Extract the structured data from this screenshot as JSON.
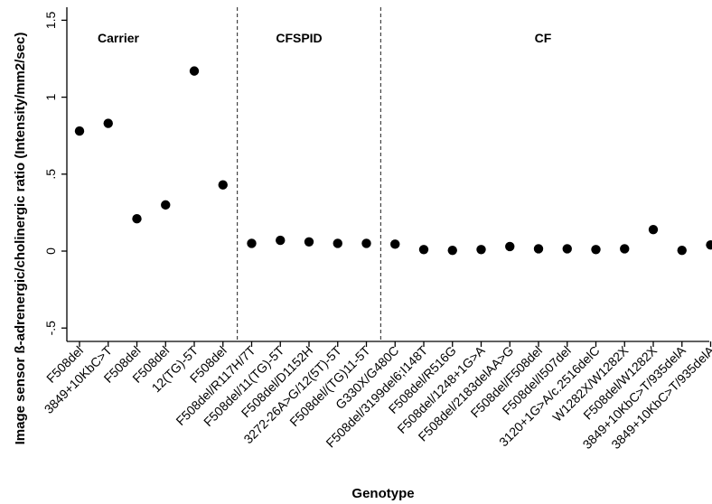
{
  "chart_data": {
    "type": "scatter",
    "xlabel": "Genotype",
    "ylabel": "Image sensor ß-adrenergic/cholinergic ratio (Intensity/mm2/sec)",
    "ylim": [
      -0.55,
      1.55
    ],
    "yticks": [
      -0.5,
      0,
      0.5,
      1,
      1.5
    ],
    "ytick_labels": [
      "-.5",
      "0",
      ".5",
      "1",
      "1.5"
    ],
    "grid": false,
    "groups": [
      {
        "label": "Carrier",
        "start": 0,
        "end": 5
      },
      {
        "label": "CFSPID",
        "start": 6,
        "end": 10
      },
      {
        "label": "CF",
        "start": 11,
        "end": 22
      }
    ],
    "categories": [
      "F508del",
      "3849+10KbC>T",
      "F508del",
      "F508del",
      "12(TG)-5T",
      "F508del",
      "F508del/R117H/7T",
      "F508del/11(TG)-5T",
      "F508del/D1152H",
      "3272-26A>G/12(5T)-5T",
      "F508del/(TG)11-5T",
      "G330X/G480C",
      "F508del/3199del6;I148T",
      "F508del/R516G",
      "F508del/1248+1G>A",
      "F508del/2183delAA>G",
      "F508del/F508del",
      "F508del/I507del",
      "3120+1G>A/c.2516delC",
      "W1282X/W1282X",
      "F508del/W1282X",
      "3849+10KbC>T/935delA",
      "3849+10KbC>T/935delA"
    ],
    "values": [
      0.78,
      0.83,
      0.21,
      0.3,
      1.17,
      0.43,
      0.05,
      0.07,
      0.06,
      0.05,
      0.05,
      0.045,
      0.01,
      0.005,
      0.01,
      0.03,
      0.015,
      0.015,
      0.01,
      0.015,
      0.14,
      0.005,
      0.04
    ]
  }
}
